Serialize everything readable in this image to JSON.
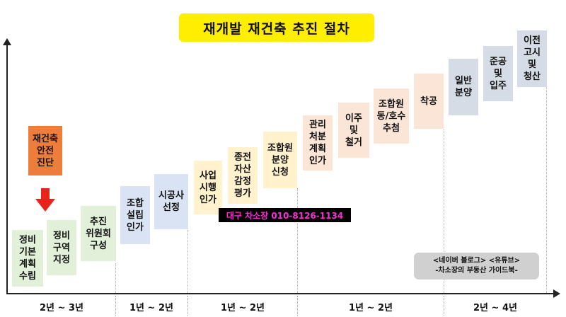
{
  "title": "재개발 재건축 추진 절차",
  "steps": [
    {
      "label": "정비\n기본\n계획\n수립",
      "color": "#e2f0d9"
    },
    {
      "label": "정비\n구역\n지정",
      "color": "#e2f0d9"
    },
    {
      "label": "추진\n위원회\n구성",
      "color": "#e2f0d9"
    },
    {
      "label": "조합\n설립\n인가",
      "color": "#dae3f3"
    },
    {
      "label": "시공사\n선정",
      "color": "#dae3f3"
    },
    {
      "label": "사업\n시행\n인가",
      "color": "#fff2cc"
    },
    {
      "label": "종전\n자산\n감정\n평가",
      "color": "#fff2cc"
    },
    {
      "label": "조합원\n분양\n신청",
      "color": "#fff2cc"
    },
    {
      "label": "관리\n처분\n계획\n인가",
      "color": "#fbe5d6"
    },
    {
      "label": "이주\n및\n철거",
      "color": "#fbe5d6"
    },
    {
      "label": "조합원\n동/호수\n추첨",
      "color": "#fbe5d6"
    },
    {
      "label": "착공",
      "color": "#fbe5d6"
    },
    {
      "label": "일반\n분양",
      "color": "#d6dce5"
    },
    {
      "label": "준공\n및\n입주",
      "color": "#d6dce5"
    },
    {
      "label": "이전\n고시\n및\n청산",
      "color": "#d6dce5"
    }
  ],
  "special": {
    "label": "재건축\n안전\n진단",
    "color": "#ee7d3b"
  },
  "periods": [
    "2년 ~ 3년",
    "1년 ~ 2년",
    "1년 ~ 2년",
    "1년 ~ 2년",
    "2년 ~ 4년"
  ],
  "contact": "대구 차소장 010-8126-1134",
  "blog": {
    "line1": "<네이버 블로그>  <유튜브>",
    "line2": "-차소장의 부동산 가이드북-"
  }
}
